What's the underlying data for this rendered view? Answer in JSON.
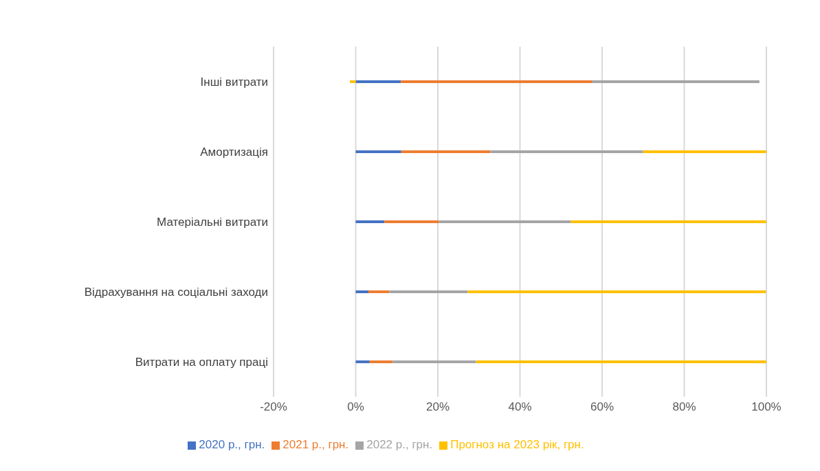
{
  "chart_data": {
    "type": "bar",
    "orientation": "horizontal",
    "stacked": true,
    "categories": [
      "Інші витрати",
      "Амортизація",
      "Матеріальні витрати",
      "Відрахування на соціальні заходи",
      "Витрати на оплату праці"
    ],
    "series": [
      {
        "name": "2020 р., грн.",
        "color": "#4472c4",
        "values": [
          11,
          11.1,
          7,
          3.1,
          3.4
        ]
      },
      {
        "name": "2021 р., грн.",
        "color": "#ed7d31",
        "values": [
          46.5,
          21.7,
          13.3,
          5.1,
          5.6
        ]
      },
      {
        "name": "2022 р., грн.",
        "color": "#a5a5a5",
        "values": [
          40.8,
          37.2,
          32.1,
          19.1,
          20.3
        ]
      },
      {
        "name": "Прогноз на 2023 рік, грн.",
        "color": "#ffc000",
        "values": [
          -1.4,
          30,
          47.6,
          72.6,
          70.7
        ]
      }
    ],
    "xlim": [
      -20,
      100
    ],
    "xticks": [
      {
        "value": -20,
        "label": "-20%"
      },
      {
        "value": 0,
        "label": "0%"
      },
      {
        "value": 20,
        "label": "20%"
      },
      {
        "value": 40,
        "label": "40%"
      },
      {
        "value": 60,
        "label": "60%"
      },
      {
        "value": 80,
        "label": "80%"
      },
      {
        "value": 100,
        "label": "100%"
      }
    ],
    "grid": "x",
    "legend": "bottom"
  }
}
